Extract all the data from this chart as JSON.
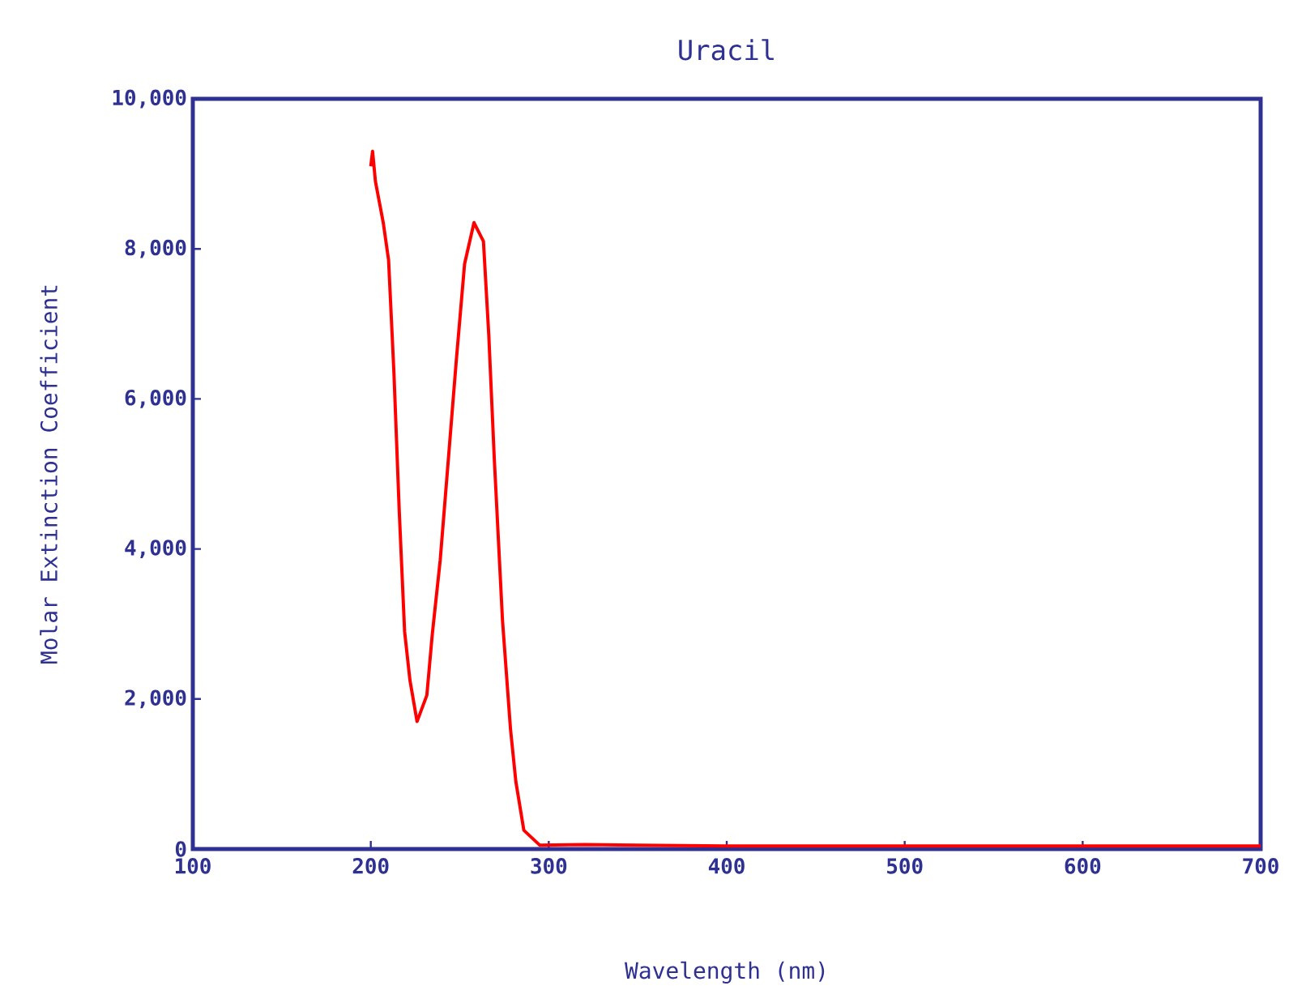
{
  "chart_data": {
    "type": "line",
    "title": "Uracil",
    "xlabel": "Wavelength (nm)",
    "ylabel": "Molar Extinction Coefficient",
    "xlim": [
      100,
      700
    ],
    "xticks": [
      100,
      200,
      300,
      400,
      500,
      600,
      700
    ],
    "ylim": [
      0,
      10000
    ],
    "yticks": [
      0,
      {
        "value": 2000,
        "label": "2,000"
      },
      {
        "value": 4000,
        "label": "4,000"
      },
      {
        "value": 6000,
        "label": "6,000"
      },
      {
        "value": 8000,
        "label": "8,000"
      },
      {
        "value": 10000,
        "label": "10,000"
      }
    ],
    "series": [
      {
        "color": "#ff0000",
        "x": [
          200,
          201,
          202.6,
          207,
          210,
          213,
          216,
          219,
          222,
          226,
          231.5,
          234.5,
          239,
          243.6,
          248,
          252.7,
          258,
          263.3,
          266.3,
          269.4,
          274,
          278.5,
          281.5,
          286,
          295,
          320,
          350,
          400,
          450,
          500,
          550,
          600,
          650,
          700
        ],
        "values": [
          9100,
          9300,
          8900,
          8350,
          7850,
          6350,
          4500,
          2900,
          2250,
          1700,
          2050,
          2850,
          3850,
          5200,
          6500,
          7800,
          8350,
          8100,
          6850,
          5200,
          3050,
          1600,
          900,
          250,
          50,
          60,
          50,
          40,
          40,
          40,
          40,
          40,
          40,
          40
        ]
      }
    ]
  }
}
